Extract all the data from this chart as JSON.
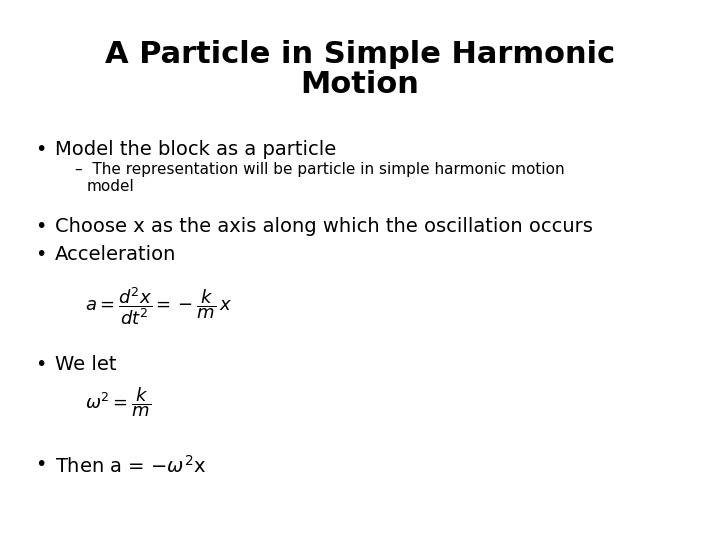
{
  "title_line1": "A Particle in Simple Harmonic",
  "title_line2": "Motion",
  "title_fontsize": 22,
  "title_fontweight": "bold",
  "background_color": "#ffffff",
  "text_color": "#000000",
  "bullet1": "Model the block as a particle",
  "bullet1_sub_line1": "–  The representation will be particle in simple harmonic motion",
  "bullet1_sub_line2": "     model",
  "bullet2": "Choose x as the axis along which the oscillation occurs",
  "bullet3": "Acceleration",
  "eq1": "$a = \\dfrac{d^2x}{dt^2} = -\\dfrac{k}{m}\\,x$",
  "bullet4": "We let",
  "eq2": "$\\omega^2 = \\dfrac{k}{m}$",
  "bullet5_pre": "Then a = -",
  "bullet5_post": "x",
  "bullet_fontsize": 14,
  "sub_fontsize": 11,
  "eq_fontsize": 13
}
